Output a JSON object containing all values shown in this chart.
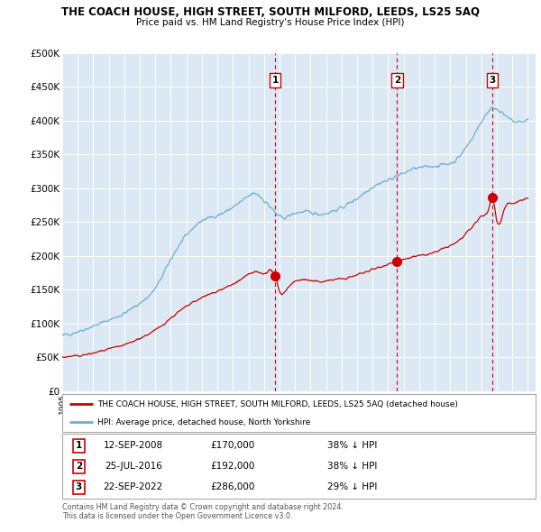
{
  "title": "THE COACH HOUSE, HIGH STREET, SOUTH MILFORD, LEEDS, LS25 5AQ",
  "subtitle": "Price paid vs. HM Land Registry's House Price Index (HPI)",
  "hpi_color": "#6baed6",
  "price_color": "#cc0000",
  "vline_color": "#cc0000",
  "background_color": "#dce9f5",
  "ylim": [
    0,
    500000
  ],
  "yticks": [
    0,
    50000,
    100000,
    150000,
    200000,
    250000,
    300000,
    350000,
    400000,
    450000,
    500000
  ],
  "xlim_start": 1995.0,
  "xlim_end": 2025.5,
  "transactions": [
    {
      "year": 2008.71,
      "price": 170000,
      "label": "1"
    },
    {
      "year": 2016.57,
      "price": 192000,
      "label": "2"
    },
    {
      "year": 2022.72,
      "price": 286000,
      "label": "3"
    }
  ],
  "legend_house_label": "THE COACH HOUSE, HIGH STREET, SOUTH MILFORD, LEEDS, LS25 5AQ (detached house)",
  "legend_hpi_label": "HPI: Average price, detached house, North Yorkshire",
  "table_rows": [
    {
      "num": "1",
      "date": "12-SEP-2008",
      "price": "£170,000",
      "note": "38% ↓ HPI"
    },
    {
      "num": "2",
      "date": "25-JUL-2016",
      "price": "£192,000",
      "note": "38% ↓ HPI"
    },
    {
      "num": "3",
      "date": "22-SEP-2022",
      "price": "£286,000",
      "note": "29% ↓ HPI"
    }
  ],
  "footer": "Contains HM Land Registry data © Crown copyright and database right 2024.\nThis data is licensed under the Open Government Licence v3.0."
}
